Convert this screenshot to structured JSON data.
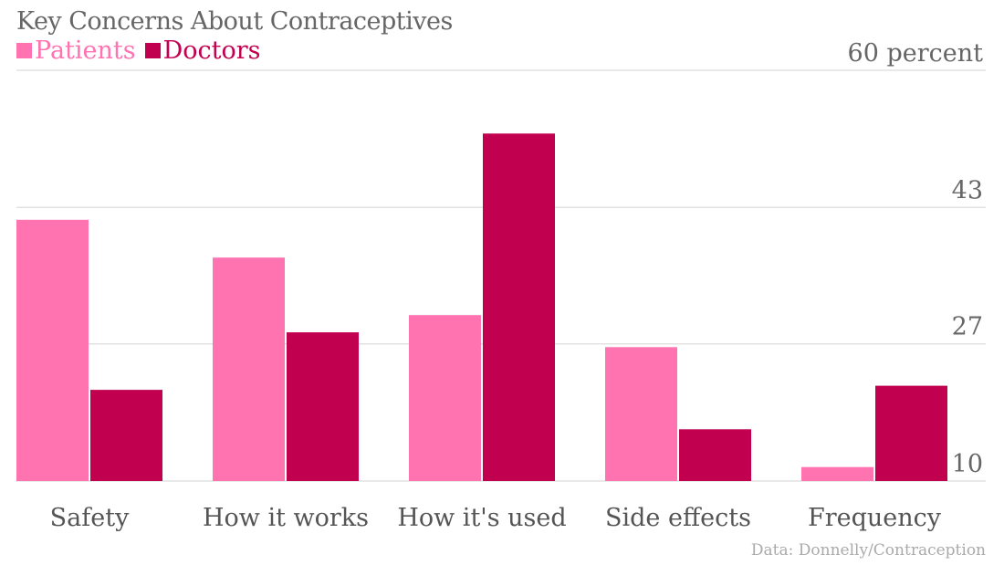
{
  "chart_data": {
    "type": "bar",
    "title": "Key Concerns About Contraceptives",
    "categories": [
      "Safety",
      "How it works",
      "How it's used",
      "Side effects",
      "Frequency"
    ],
    "series": [
      {
        "name": "Patients",
        "color": "#ff73b1",
        "values": [
          41.8,
          37.2,
          30.2,
          26.3,
          11.7
        ]
      },
      {
        "name": "Doctors",
        "color": "#c1004f",
        "values": [
          21.1,
          28.1,
          52.3,
          16.3,
          21.6
        ]
      }
    ],
    "yticks": [
      {
        "value": 60,
        "label": "60 percent"
      },
      {
        "value": 43.3,
        "label": "43"
      },
      {
        "value": 26.7,
        "label": "27"
      },
      {
        "value": 10,
        "label": "10"
      }
    ],
    "ylim": [
      10,
      60
    ],
    "xlabel": "",
    "ylabel": "percent",
    "grid": true,
    "legend": "top-left",
    "source": "Data: Donnelly/Contraception"
  }
}
